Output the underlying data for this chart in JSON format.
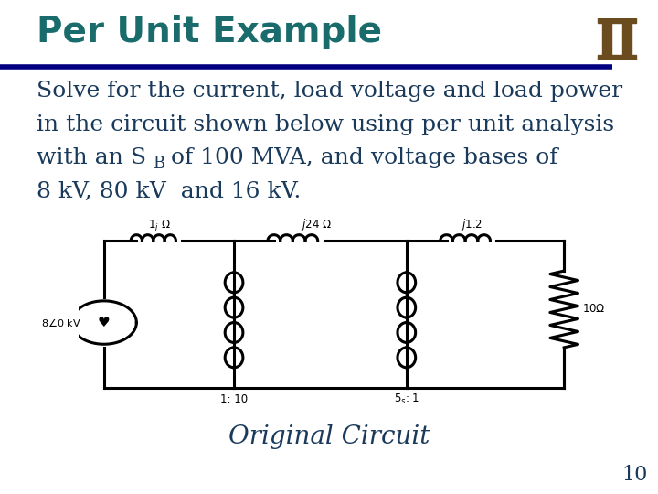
{
  "title": "Per Unit Example",
  "title_color": "#1a6b6b",
  "title_fontsize": 28,
  "header_line_color": "#000080",
  "body_text_color": "#1a3a5c",
  "body_fontsize": 18,
  "caption_text": "Original Circuit",
  "caption_color": "#1a3a5c",
  "caption_fontsize": 20,
  "page_number": "10",
  "page_number_color": "#1a3a5c",
  "background_color": "#ffffff"
}
